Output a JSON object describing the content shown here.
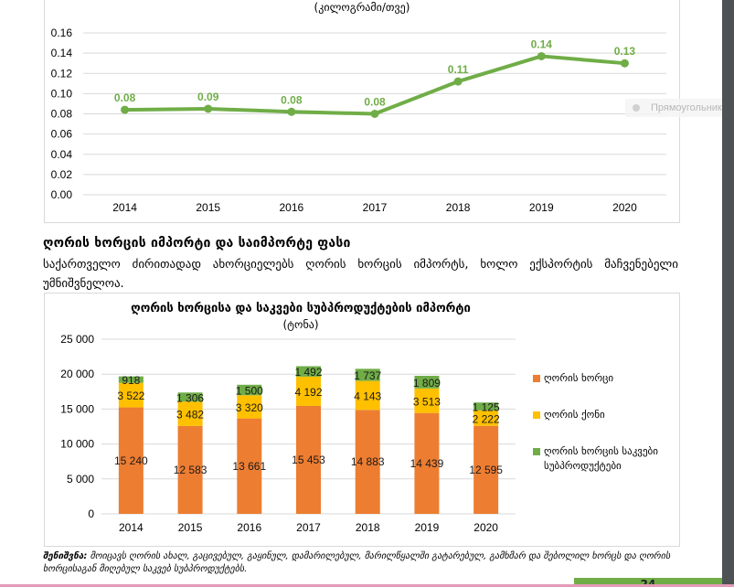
{
  "line_chart": {
    "subtitle": "(კილოგრამი/თვე)",
    "tooltip_text": "Прямоугольник",
    "colors": {
      "line": "#70ad47",
      "grid": "#d9d9d9"
    }
  },
  "section": {
    "heading": "ღორის ხორცის იმპორტი და საიმპორტე ფასი",
    "body": "საქართველო ძირითადად ახორციელებს ღორის ხორცის იმპორტს, ხოლო ექსპორტის მაჩვენებელი უმნიშვნელოა."
  },
  "bar_chart": {
    "title": "ღორის ხორცისა და საკვები სუბპროდუქტების იმპორტი",
    "subtitle": "(ტონა)",
    "colors": {
      "pork": "#ed7d31",
      "fat": "#ffc000",
      "offal": "#70ad47"
    }
  },
  "note": {
    "label": "შენიშვნა:",
    "text": "მოიცავს ღორის ახალ, გაცივებულ, გაყინულ, დამარილებულ, მარილწყალში გატარებულ, გამხმარ და შებოლილ ხორცს და ღორის ხორცისაგან მიღებულ საკვებ სუბპროდუქტებს."
  },
  "page_number": "24",
  "chart_data": [
    {
      "type": "line",
      "title": "",
      "subtitle": "(კილოგრამი/თვე)",
      "xlabel": "",
      "ylabel": "",
      "categories": [
        "2014",
        "2015",
        "2016",
        "2017",
        "2018",
        "2019",
        "2020"
      ],
      "series": [
        {
          "name": "",
          "values": [
            0.084,
            0.085,
            0.082,
            0.08,
            0.112,
            0.137,
            0.13
          ],
          "data_labels": [
            "0.08",
            "0.09",
            "0.08",
            "0.08",
            "0.11",
            "0.14",
            "0.13"
          ]
        }
      ],
      "ylim": [
        0,
        0.16
      ],
      "yticks": [
        "0.00",
        "0.02",
        "0.04",
        "0.06",
        "0.08",
        "0.10",
        "0.12",
        "0.14",
        "0.16"
      ],
      "grid": true,
      "legend": "none"
    },
    {
      "type": "bar",
      "stacked": true,
      "title": "ღორის ხორცისა და საკვები სუბპროდუქტების იმპორტი",
      "subtitle": "(ტონა)",
      "xlabel": "",
      "ylabel": "",
      "categories": [
        "2014",
        "2015",
        "2016",
        "2017",
        "2018",
        "2019",
        "2020"
      ],
      "series": [
        {
          "name": "ღორის ხორცი",
          "values": [
            15240,
            12583,
            13661,
            15453,
            14883,
            14439,
            12595
          ],
          "data_labels": [
            "15 240",
            "12 583",
            "13 661",
            "15 453",
            "14 883",
            "14 439",
            "12 595"
          ]
        },
        {
          "name": "ღორის ქონი",
          "values": [
            3522,
            3482,
            3320,
            4192,
            4143,
            3513,
            2222
          ],
          "data_labels": [
            "3 522",
            "3 482",
            "3 320",
            "4 192",
            "4 143",
            "3 513",
            "2 222"
          ]
        },
        {
          "name": "ღორის ხორცის საკვები სუბპროდუქტები",
          "values": [
            918,
            1306,
            1500,
            1492,
            1737,
            1809,
            1125
          ],
          "data_labels": [
            "918",
            "1 306",
            "1 500",
            "1 492",
            "1 737",
            "1 809",
            "1 125"
          ]
        }
      ],
      "ylim": [
        0,
        25000
      ],
      "yticks": [
        "0",
        "5 000",
        "10 000",
        "15 000",
        "20 000",
        "25 000"
      ],
      "grid": true,
      "legend": "right"
    }
  ]
}
